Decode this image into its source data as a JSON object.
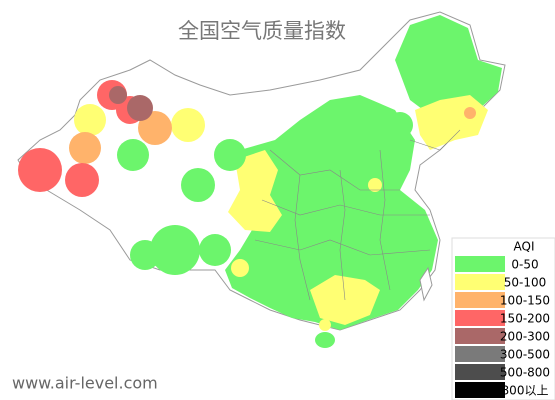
{
  "title": "全国空气质量指数",
  "legend": {
    "title": "AQI",
    "items": [
      {
        "label": "0-50",
        "color": "#6cf56c"
      },
      {
        "label": "50-100",
        "color": "#ffff73"
      },
      {
        "label": "100-150",
        "color": "#ffb36b"
      },
      {
        "label": "150-200",
        "color": "#ff6666"
      },
      {
        "label": "200-300",
        "color": "#aa6868"
      },
      {
        "label": "300-500",
        "color": "#7a7a7a"
      },
      {
        "label": "500-800",
        "color": "#4d4d4d"
      },
      {
        "label": "800以上",
        "color": "#000000"
      }
    ]
  },
  "watermark": "www.air-level.com"
}
